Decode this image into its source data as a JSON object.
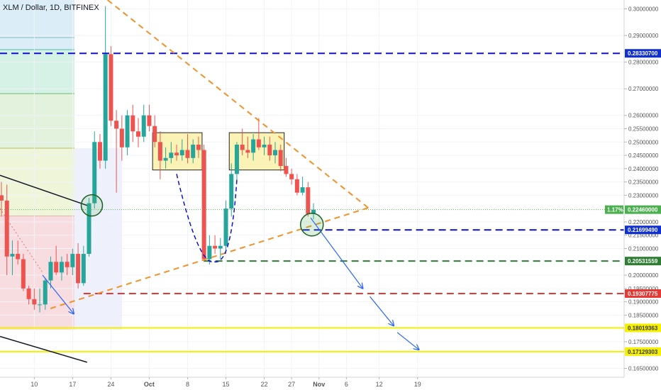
{
  "header": {
    "title": "XLM / Dollar, 1D, BITFINEX"
  },
  "colors": {
    "up": "#26a69a",
    "down": "#ef5350",
    "blue_line": "#1010d0",
    "orange": "#f0922a",
    "green_dash": "#2e7d32",
    "red_dash": "#e53935",
    "yellow": "#f5f000",
    "badge_green": "#4caf50",
    "badge_blue": "#1030d0",
    "badge_red": "#e53935"
  },
  "price_axis": {
    "ticks": [
      "0.30000000",
      "0.29000000",
      "0.28000000",
      "0.27000000",
      "0.26000000",
      "0.25500000",
      "0.25000000",
      "0.24500000",
      "0.24000000",
      "0.23500000",
      "0.23000000",
      "0.22000000",
      "0.21500000",
      "0.21000000",
      "0.20000000",
      "0.19500000",
      "0.19000000",
      "0.18500000",
      "0.17500000",
      "0.16500000"
    ],
    "tick_values": [
      0.3,
      0.29,
      0.28,
      0.27,
      0.26,
      0.255,
      0.25,
      0.245,
      0.24,
      0.235,
      0.23,
      0.22,
      0.215,
      0.21,
      0.2,
      0.195,
      0.19,
      0.185,
      0.175,
      0.165
    ]
  },
  "time_axis": {
    "labels": [
      "10",
      "17",
      "24",
      "Oct",
      "8",
      "15",
      "22",
      "27",
      "Nov",
      "6",
      "12",
      "19"
    ]
  },
  "price_badges": [
    {
      "label": "0.28330700",
      "value": 0.2833,
      "kind": "blue"
    },
    {
      "label": "0.22460000",
      "value": 0.2246,
      "kind": "current",
      "percent": "1.17%"
    },
    {
      "label": "0.21699490",
      "value": 0.217,
      "kind": "blue"
    },
    {
      "label": "0.20531559",
      "value": 0.2053,
      "kind": "green"
    },
    {
      "label": "0.19307775",
      "value": 0.1931,
      "kind": "red"
    },
    {
      "label": "0.18019363",
      "value": 0.1802,
      "kind": "yellow"
    },
    {
      "label": "0.17129303",
      "value": 0.1713,
      "kind": "yellow"
    }
  ],
  "chart_data": {
    "type": "candlestick",
    "title": "XLM / Dollar, 1D, BITFINEX",
    "ylim": [
      0.163,
      0.302
    ],
    "x_range": [
      "2018-09-04",
      "2018-11-22"
    ],
    "candles": [
      {
        "d": "2018-09-04",
        "o": 0.23,
        "h": 0.235,
        "l": 0.222,
        "c": 0.228
      },
      {
        "d": "2018-09-05",
        "o": 0.228,
        "h": 0.234,
        "l": 0.2,
        "c": 0.207
      },
      {
        "d": "2018-09-06",
        "o": 0.207,
        "h": 0.213,
        "l": 0.2,
        "c": 0.208
      },
      {
        "d": "2018-09-07",
        "o": 0.208,
        "h": 0.213,
        "l": 0.204,
        "c": 0.206
      },
      {
        "d": "2018-09-08",
        "o": 0.206,
        "h": 0.208,
        "l": 0.194,
        "c": 0.195
      },
      {
        "d": "2018-09-09",
        "o": 0.195,
        "h": 0.196,
        "l": 0.189,
        "c": 0.191
      },
      {
        "d": "2018-09-10",
        "o": 0.191,
        "h": 0.195,
        "l": 0.187,
        "c": 0.189
      },
      {
        "d": "2018-09-11",
        "o": 0.189,
        "h": 0.195,
        "l": 0.186,
        "c": 0.189
      },
      {
        "d": "2018-09-12",
        "o": 0.189,
        "h": 0.199,
        "l": 0.187,
        "c": 0.198
      },
      {
        "d": "2018-09-13",
        "o": 0.198,
        "h": 0.207,
        "l": 0.195,
        "c": 0.205
      },
      {
        "d": "2018-09-14",
        "o": 0.205,
        "h": 0.211,
        "l": 0.2,
        "c": 0.201
      },
      {
        "d": "2018-09-15",
        "o": 0.201,
        "h": 0.207,
        "l": 0.198,
        "c": 0.205
      },
      {
        "d": "2018-09-16",
        "o": 0.205,
        "h": 0.208,
        "l": 0.2,
        "c": 0.203
      },
      {
        "d": "2018-09-17",
        "o": 0.203,
        "h": 0.21,
        "l": 0.2,
        "c": 0.208
      },
      {
        "d": "2018-09-18",
        "o": 0.208,
        "h": 0.212,
        "l": 0.195,
        "c": 0.197
      },
      {
        "d": "2018-09-19",
        "o": 0.197,
        "h": 0.211,
        "l": 0.196,
        "c": 0.208
      },
      {
        "d": "2018-09-20",
        "o": 0.208,
        "h": 0.229,
        "l": 0.207,
        "c": 0.227
      },
      {
        "d": "2018-09-21",
        "o": 0.227,
        "h": 0.254,
        "l": 0.225,
        "c": 0.25
      },
      {
        "d": "2018-09-22",
        "o": 0.25,
        "h": 0.253,
        "l": 0.24,
        "c": 0.243
      },
      {
        "d": "2018-09-23",
        "o": 0.243,
        "h": 0.301,
        "l": 0.24,
        "c": 0.283
      },
      {
        "d": "2018-09-24",
        "o": 0.283,
        "h": 0.286,
        "l": 0.256,
        "c": 0.258
      },
      {
        "d": "2018-09-25",
        "o": 0.258,
        "h": 0.262,
        "l": 0.231,
        "c": 0.255
      },
      {
        "d": "2018-09-26",
        "o": 0.255,
        "h": 0.26,
        "l": 0.243,
        "c": 0.248
      },
      {
        "d": "2018-09-27",
        "o": 0.248,
        "h": 0.262,
        "l": 0.245,
        "c": 0.26
      },
      {
        "d": "2018-09-28",
        "o": 0.26,
        "h": 0.264,
        "l": 0.25,
        "c": 0.254
      },
      {
        "d": "2018-09-29",
        "o": 0.254,
        "h": 0.259,
        "l": 0.248,
        "c": 0.252
      },
      {
        "d": "2018-09-30",
        "o": 0.252,
        "h": 0.264,
        "l": 0.25,
        "c": 0.26
      },
      {
        "d": "2018-10-01",
        "o": 0.26,
        "h": 0.264,
        "l": 0.254,
        "c": 0.256
      },
      {
        "d": "2018-10-02",
        "o": 0.256,
        "h": 0.26,
        "l": 0.248,
        "c": 0.25
      },
      {
        "d": "2018-10-03",
        "o": 0.25,
        "h": 0.254,
        "l": 0.236,
        "c": 0.243
      },
      {
        "d": "2018-10-04",
        "o": 0.243,
        "h": 0.248,
        "l": 0.24,
        "c": 0.244
      },
      {
        "d": "2018-10-05",
        "o": 0.244,
        "h": 0.25,
        "l": 0.242,
        "c": 0.246
      },
      {
        "d": "2018-10-06",
        "o": 0.246,
        "h": 0.249,
        "l": 0.243,
        "c": 0.245
      },
      {
        "d": "2018-10-07",
        "o": 0.245,
        "h": 0.251,
        "l": 0.243,
        "c": 0.247
      },
      {
        "d": "2018-10-08",
        "o": 0.247,
        "h": 0.253,
        "l": 0.242,
        "c": 0.244
      },
      {
        "d": "2018-10-09",
        "o": 0.244,
        "h": 0.251,
        "l": 0.242,
        "c": 0.249
      },
      {
        "d": "2018-10-10",
        "o": 0.249,
        "h": 0.252,
        "l": 0.244,
        "c": 0.247
      },
      {
        "d": "2018-10-11",
        "o": 0.247,
        "h": 0.249,
        "l": 0.205,
        "c": 0.206
      },
      {
        "d": "2018-10-12",
        "o": 0.206,
        "h": 0.215,
        "l": 0.204,
        "c": 0.211
      },
      {
        "d": "2018-10-13",
        "o": 0.211,
        "h": 0.215,
        "l": 0.208,
        "c": 0.21
      },
      {
        "d": "2018-10-14",
        "o": 0.21,
        "h": 0.214,
        "l": 0.206,
        "c": 0.211
      },
      {
        "d": "2018-10-15",
        "o": 0.211,
        "h": 0.228,
        "l": 0.208,
        "c": 0.225
      },
      {
        "d": "2018-10-16",
        "o": 0.225,
        "h": 0.242,
        "l": 0.222,
        "c": 0.238
      },
      {
        "d": "2018-10-17",
        "o": 0.238,
        "h": 0.25,
        "l": 0.235,
        "c": 0.249
      },
      {
        "d": "2018-10-18",
        "o": 0.249,
        "h": 0.255,
        "l": 0.245,
        "c": 0.247
      },
      {
        "d": "2018-10-19",
        "o": 0.247,
        "h": 0.252,
        "l": 0.244,
        "c": 0.246
      },
      {
        "d": "2018-10-20",
        "o": 0.246,
        "h": 0.253,
        "l": 0.243,
        "c": 0.251
      },
      {
        "d": "2018-10-21",
        "o": 0.251,
        "h": 0.259,
        "l": 0.247,
        "c": 0.248
      },
      {
        "d": "2018-10-22",
        "o": 0.248,
        "h": 0.252,
        "l": 0.245,
        "c": 0.249
      },
      {
        "d": "2018-10-23",
        "o": 0.249,
        "h": 0.252,
        "l": 0.243,
        "c": 0.245
      },
      {
        "d": "2018-10-24",
        "o": 0.245,
        "h": 0.25,
        "l": 0.242,
        "c": 0.247
      },
      {
        "d": "2018-10-25",
        "o": 0.247,
        "h": 0.249,
        "l": 0.239,
        "c": 0.241
      },
      {
        "d": "2018-10-26",
        "o": 0.241,
        "h": 0.244,
        "l": 0.237,
        "c": 0.238
      },
      {
        "d": "2018-10-27",
        "o": 0.238,
        "h": 0.24,
        "l": 0.234,
        "c": 0.236
      },
      {
        "d": "2018-10-28",
        "o": 0.236,
        "h": 0.238,
        "l": 0.23,
        "c": 0.231
      },
      {
        "d": "2018-10-29",
        "o": 0.231,
        "h": 0.237,
        "l": 0.23,
        "c": 0.233
      },
      {
        "d": "2018-10-30",
        "o": 0.233,
        "h": 0.235,
        "l": 0.222,
        "c": 0.223
      },
      {
        "d": "2018-10-31",
        "o": 0.223,
        "h": 0.227,
        "l": 0.221,
        "c": 0.2246
      }
    ]
  }
}
